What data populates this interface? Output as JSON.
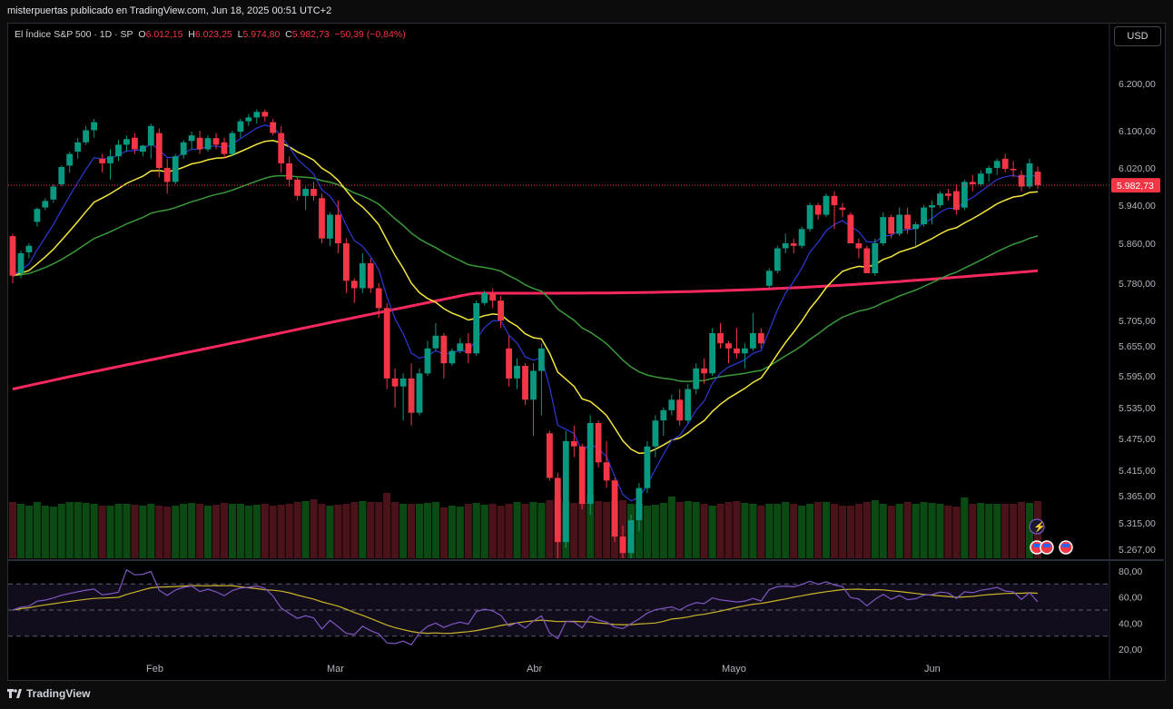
{
  "header": {
    "publisher": "misterpuertas publicado en TradingView.com, Jun 18, 2025 00:51 UTC+2"
  },
  "legend": {
    "symbol": "El Índice S&P 500 · 1D · SP",
    "o_label": "O",
    "o_value": "6.012,15",
    "h_label": "H",
    "h_value": "6.023,25",
    "l_label": "L",
    "l_value": "5.974,80",
    "c_label": "C",
    "c_value": "5.982,73",
    "change": "−50,39 (−0,84%)"
  },
  "currency_button": "USD",
  "last_price_label": "5.982,73",
  "colors": {
    "up": "#089981",
    "down": "#f23645",
    "ema_fast": "#2d39d8",
    "ema_mid": "#f5e63d",
    "ema_slow": "#3a9a3a",
    "ema_long": "#f7285e",
    "rsi": "#7e57c2",
    "rsi_ma": "#c9b32a",
    "vol_up": "#0c4a14",
    "vol_down": "#4a1219"
  },
  "footer": {
    "brand": "TradingView"
  },
  "chart_data": [
    {
      "type": "candlestick",
      "title": "El Índice S&P 500 · 1D · SP",
      "y_ticks": [
        "6.200,00",
        "6.100,00",
        "6.020,00",
        "5.940,00",
        "5.860,00",
        "5.780,00",
        "5.705,00",
        "5.655,00",
        "5.595,00",
        "5.535,00",
        "5.475,00",
        "5.415,00",
        "5.365,00",
        "5.315,00",
        "5.267,00"
      ],
      "x_ticks": [
        "Feb",
        "Mar",
        "Abr",
        "Mayo",
        "Jun"
      ],
      "ohlc": [
        [
          5875,
          5880,
          5780,
          5795
        ],
        [
          5800,
          5845,
          5790,
          5840
        ],
        [
          5842,
          5860,
          5830,
          5855
        ],
        [
          5905,
          5935,
          5895,
          5932
        ],
        [
          5935,
          5955,
          5930,
          5949
        ],
        [
          5952,
          5985,
          5945,
          5980
        ],
        [
          5985,
          6025,
          5980,
          6022
        ],
        [
          6025,
          6055,
          6010,
          6050
        ],
        [
          6055,
          6085,
          6040,
          6075
        ],
        [
          6075,
          6110,
          6070,
          6101
        ],
        [
          6101,
          6125,
          6085,
          6118
        ],
        [
          6040,
          6050,
          6010,
          6030
        ],
        [
          6030,
          6060,
          5995,
          6045
        ],
        [
          6045,
          6080,
          6035,
          6070
        ],
        [
          6070,
          6090,
          6055,
          6082
        ],
        [
          6085,
          6095,
          6050,
          6060
        ],
        [
          6055,
          6070,
          6045,
          6068
        ],
        [
          6068,
          6115,
          6040,
          6110
        ],
        [
          6095,
          6105,
          6000,
          6020
        ],
        [
          6020,
          6040,
          5965,
          5990
        ],
        [
          5990,
          6050,
          5985,
          6045
        ],
        [
          6048,
          6080,
          6040,
          6075
        ],
        [
          6078,
          6098,
          6060,
          6090
        ],
        [
          6085,
          6100,
          6050,
          6060
        ],
        [
          6060,
          6090,
          6055,
          6084
        ],
        [
          6084,
          6095,
          6060,
          6070
        ],
        [
          6075,
          6085,
          6040,
          6050
        ],
        [
          6050,
          6100,
          6045,
          6095
        ],
        [
          6098,
          6125,
          6085,
          6120
        ],
        [
          6120,
          6135,
          6110,
          6128
        ],
        [
          6128,
          6145,
          6115,
          6140
        ],
        [
          6140,
          6145,
          6120,
          6130
        ],
        [
          6118,
          6125,
          6090,
          6095
        ],
        [
          6095,
          6110,
          6010,
          6030
        ],
        [
          6030,
          6045,
          5980,
          5995
        ],
        [
          5995,
          6000,
          5950,
          5960
        ],
        [
          5960,
          5980,
          5930,
          5975
        ],
        [
          5975,
          5990,
          5950,
          5960
        ],
        [
          5955,
          5965,
          5860,
          5870
        ],
        [
          5870,
          5925,
          5855,
          5920
        ],
        [
          5920,
          5950,
          5840,
          5860
        ],
        [
          5860,
          5870,
          5760,
          5785
        ],
        [
          5785,
          5790,
          5740,
          5770
        ],
        [
          5770,
          5840,
          5760,
          5820
        ],
        [
          5820,
          5830,
          5760,
          5770
        ],
        [
          5770,
          5780,
          5710,
          5730
        ],
        [
          5730,
          5740,
          5570,
          5590
        ],
        [
          5590,
          5610,
          5535,
          5575
        ],
        [
          5575,
          5600,
          5510,
          5590
        ],
        [
          5590,
          5620,
          5500,
          5525
        ],
        [
          5525,
          5610,
          5520,
          5600
        ],
        [
          5600,
          5665,
          5595,
          5650
        ],
        [
          5650,
          5700,
          5645,
          5675
        ],
        [
          5675,
          5680,
          5590,
          5620
        ],
        [
          5620,
          5650,
          5615,
          5645
        ],
        [
          5645,
          5670,
          5640,
          5660
        ],
        [
          5660,
          5680,
          5620,
          5640
        ],
        [
          5640,
          5745,
          5635,
          5740
        ],
        [
          5740,
          5765,
          5735,
          5760
        ],
        [
          5760,
          5770,
          5730,
          5745
        ],
        [
          5745,
          5755,
          5690,
          5705
        ],
        [
          5650,
          5675,
          5575,
          5590
        ],
        [
          5590,
          5630,
          5570,
          5615
        ],
        [
          5615,
          5620,
          5540,
          5550
        ],
        [
          5550,
          5620,
          5480,
          5605
        ],
        [
          5605,
          5660,
          5520,
          5650
        ],
        [
          5485,
          5490,
          5395,
          5400
        ],
        [
          5400,
          5410,
          5250,
          5280
        ],
        [
          5280,
          5490,
          5270,
          5470
        ],
        [
          5470,
          5500,
          5440,
          5460
        ],
        [
          5460,
          5465,
          5340,
          5350
        ],
        [
          5350,
          5520,
          5330,
          5505
        ],
        [
          5505,
          5510,
          5420,
          5430
        ],
        [
          5430,
          5470,
          5380,
          5395
        ],
        [
          5395,
          5400,
          5280,
          5290
        ],
        [
          5290,
          5310,
          5230,
          5260
        ],
        [
          5260,
          5330,
          5250,
          5320
        ],
        [
          5320,
          5390,
          5300,
          5380
        ],
        [
          5380,
          5470,
          5370,
          5460
        ],
        [
          5460,
          5520,
          5440,
          5510
        ],
        [
          5510,
          5535,
          5480,
          5530
        ],
        [
          5530,
          5560,
          5520,
          5550
        ],
        [
          5550,
          5570,
          5500,
          5510
        ],
        [
          5510,
          5580,
          5505,
          5570
        ],
        [
          5570,
          5620,
          5560,
          5610
        ],
        [
          5610,
          5630,
          5580,
          5600
        ],
        [
          5600,
          5690,
          5595,
          5680
        ],
        [
          5680,
          5700,
          5650,
          5660
        ],
        [
          5660,
          5665,
          5620,
          5650
        ],
        [
          5650,
          5690,
          5630,
          5640
        ],
        [
          5640,
          5660,
          5610,
          5650
        ],
        [
          5650,
          5720,
          5645,
          5680
        ],
        [
          5680,
          5690,
          5650,
          5660
        ],
        [
          5775,
          5810,
          5770,
          5805
        ],
        [
          5805,
          5855,
          5800,
          5850
        ],
        [
          5850,
          5880,
          5840,
          5860
        ],
        [
          5860,
          5870,
          5840,
          5855
        ],
        [
          5855,
          5895,
          5850,
          5890
        ],
        [
          5890,
          5945,
          5885,
          5940
        ],
        [
          5940,
          5945,
          5910,
          5920
        ],
        [
          5920,
          5965,
          5915,
          5960
        ],
        [
          5960,
          5970,
          5890,
          5940
        ],
        [
          5935,
          5945,
          5915,
          5930
        ],
        [
          5920,
          5925,
          5860,
          5860
        ],
        [
          5860,
          5870,
          5830,
          5850
        ],
        [
          5850,
          5855,
          5800,
          5800
        ],
        [
          5800,
          5870,
          5795,
          5860
        ],
        [
          5860,
          5925,
          5855,
          5915
        ],
        [
          5915,
          5920,
          5870,
          5880
        ],
        [
          5880,
          5935,
          5875,
          5920
        ],
        [
          5920,
          5935,
          5880,
          5890
        ],
        [
          5890,
          5905,
          5855,
          5900
        ],
        [
          5900,
          5940,
          5895,
          5935
        ],
        [
          5935,
          5950,
          5900,
          5940
        ],
        [
          5940,
          5970,
          5935,
          5965
        ],
        [
          5965,
          5975,
          5950,
          5960
        ],
        [
          5970,
          5985,
          5920,
          5930
        ],
        [
          5935,
          5995,
          5930,
          5990
        ],
        [
          5990,
          6005,
          5970,
          5985
        ],
        [
          5985,
          6015,
          5980,
          6008
        ],
        [
          6008,
          6025,
          5990,
          6020
        ],
        [
          6020,
          6040,
          6005,
          6035
        ],
        [
          6040,
          6050,
          6010,
          6018
        ],
        [
          6018,
          6035,
          6000,
          6015
        ],
        [
          6005,
          6015,
          5970,
          5980
        ],
        [
          5980,
          6040,
          5975,
          6030
        ],
        [
          6012,
          6023,
          5975,
          5983
        ]
      ],
      "volume": [
        62,
        60,
        58,
        62,
        58,
        57,
        60,
        62,
        62,
        61,
        60,
        58,
        58,
        60,
        60,
        59,
        58,
        60,
        58,
        57,
        58,
        60,
        61,
        60,
        58,
        59,
        61,
        60,
        60,
        58,
        59,
        60,
        58,
        59,
        60,
        62,
        63,
        65,
        60,
        58,
        59,
        60,
        62,
        63,
        62,
        62,
        64,
        62,
        60,
        60,
        60,
        61,
        62,
        56,
        58,
        57,
        60,
        61,
        59,
        60,
        58,
        60,
        62,
        60,
        62,
        61,
        64,
        66,
        62,
        61,
        62,
        62,
        63,
        62,
        63,
        64,
        60,
        60,
        58,
        59,
        61,
        60,
        62,
        63,
        62,
        60,
        58,
        60,
        62,
        63,
        61,
        60,
        58,
        60,
        60,
        62,
        60,
        58,
        60,
        62,
        62,
        60,
        58,
        58,
        60,
        62,
        64,
        60,
        58,
        60,
        62,
        60,
        62,
        61,
        60,
        58,
        57,
        59,
        60,
        61,
        60,
        60,
        60,
        60,
        62,
        61,
        63
      ],
      "rsi_ticks": [
        "80,00",
        "60,00",
        "40,00",
        "20,00"
      ]
    }
  ]
}
